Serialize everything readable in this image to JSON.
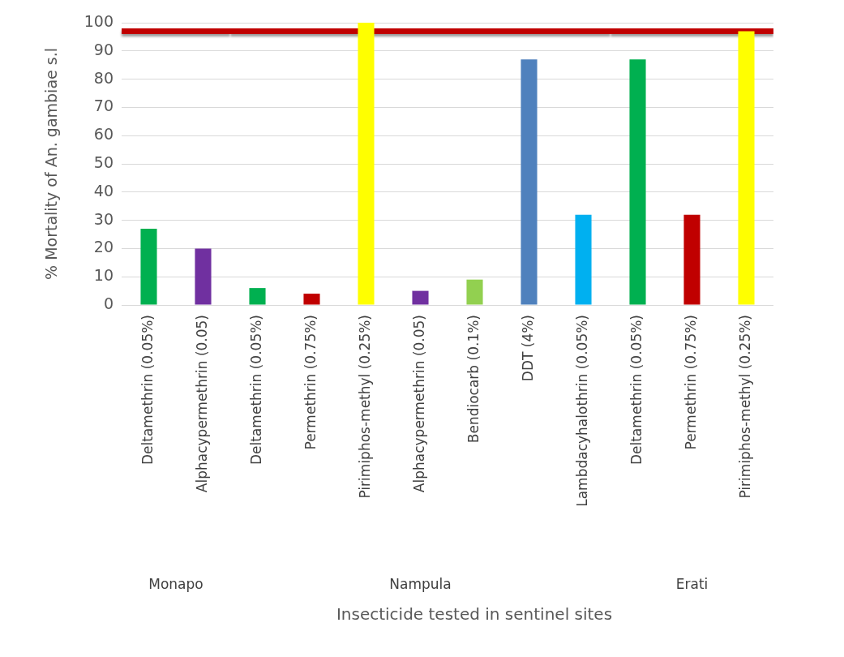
{
  "chart_data": [
    {
      "type": "bar",
      "xlabel": "Monapo",
      "ylabel": "% Mortality of An. gambiae s.l",
      "categories": [
        "Deltamethrin (0.05%)",
        "Alphacypermethrin (0.05)"
      ],
      "values": [
        27,
        20
      ],
      "colors": [
        "#00b050",
        "#7030a0"
      ],
      "ylim": [
        0,
        100
      ],
      "yticks": [
        0,
        10,
        20,
        30,
        40,
        50,
        60,
        70,
        80,
        90,
        100
      ],
      "grid": "y",
      "ref_lines": [
        {
          "axis": "y",
          "value": 97,
          "color": "#c00000"
        }
      ]
    },
    {
      "type": "bar",
      "xlabel": "Nampula",
      "categories": [
        "Deltamethrin (0.05%)",
        "Permethrin (0.75%)",
        "Pirimiphos-methyl (0.25%)",
        "Alphacypermethrin (0.05)",
        "Bendiocarb (0.1%)",
        "DDT (4%)",
        "Lambdacyhalothrin (0.05%)"
      ],
      "values": [
        6,
        4,
        100,
        5,
        9,
        87,
        32
      ],
      "colors": [
        "#00b050",
        "#c00000",
        "#ffff00",
        "#7030a0",
        "#92d050",
        "#4f81bd",
        "#00b0f0"
      ],
      "ylim": [
        0,
        100
      ],
      "grid": "y",
      "tick_labels": "x",
      "ref_lines": [
        {
          "axis": "y",
          "value": 97,
          "color": "#c00000"
        }
      ],
      "annotations": [
        "Insecticide tested in sentinel sites"
      ]
    },
    {
      "type": "bar",
      "xlabel": "Erati",
      "categories": [
        "Deltamethrin (0.05%)",
        "Permethrin (0.75%)",
        "Pirimiphos-methyl (0.25%)"
      ],
      "values": [
        87,
        32,
        97
      ],
      "colors": [
        "#00b050",
        "#c00000",
        "#ffff00"
      ],
      "ylim": [
        0,
        100
      ],
      "grid": "y",
      "tick_labels": "x",
      "ref_lines": [
        {
          "axis": "y",
          "value": 97,
          "color": "#c00000"
        }
      ]
    }
  ]
}
